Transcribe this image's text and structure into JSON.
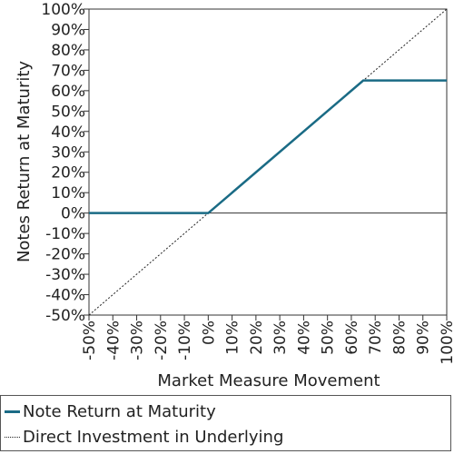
{
  "chart_data": {
    "type": "line",
    "xlabel": "Market Measure Movement",
    "ylabel": "Notes Return at Maturity",
    "xlim": [
      -50,
      100
    ],
    "ylim": [
      -50,
      100
    ],
    "x_ticks": [
      "-50%",
      "-40%",
      "-30%",
      "-20%",
      "-10%",
      "0%",
      "10%",
      "20%",
      "30%",
      "40%",
      "50%",
      "60%",
      "70%",
      "80%",
      "90%",
      "100%"
    ],
    "y_ticks": [
      "100%",
      "90%",
      "80%",
      "70%",
      "60%",
      "50%",
      "40%",
      "30%",
      "20%",
      "10%",
      "0%",
      "-10%",
      "-20%",
      "-30%",
      "-40%",
      "-50%"
    ],
    "grid": false,
    "legend_position": "bottom",
    "series": [
      {
        "name": "Note Return at Maturity",
        "color": "#1a6b85",
        "style": "solid",
        "x": [
          -50,
          0,
          65,
          100
        ],
        "y": [
          0,
          0,
          65,
          65
        ]
      },
      {
        "name": "Direct Investment in Underlying",
        "color": "#222222",
        "style": "dotted",
        "x": [
          -50,
          100
        ],
        "y": [
          -50,
          100
        ]
      }
    ]
  }
}
